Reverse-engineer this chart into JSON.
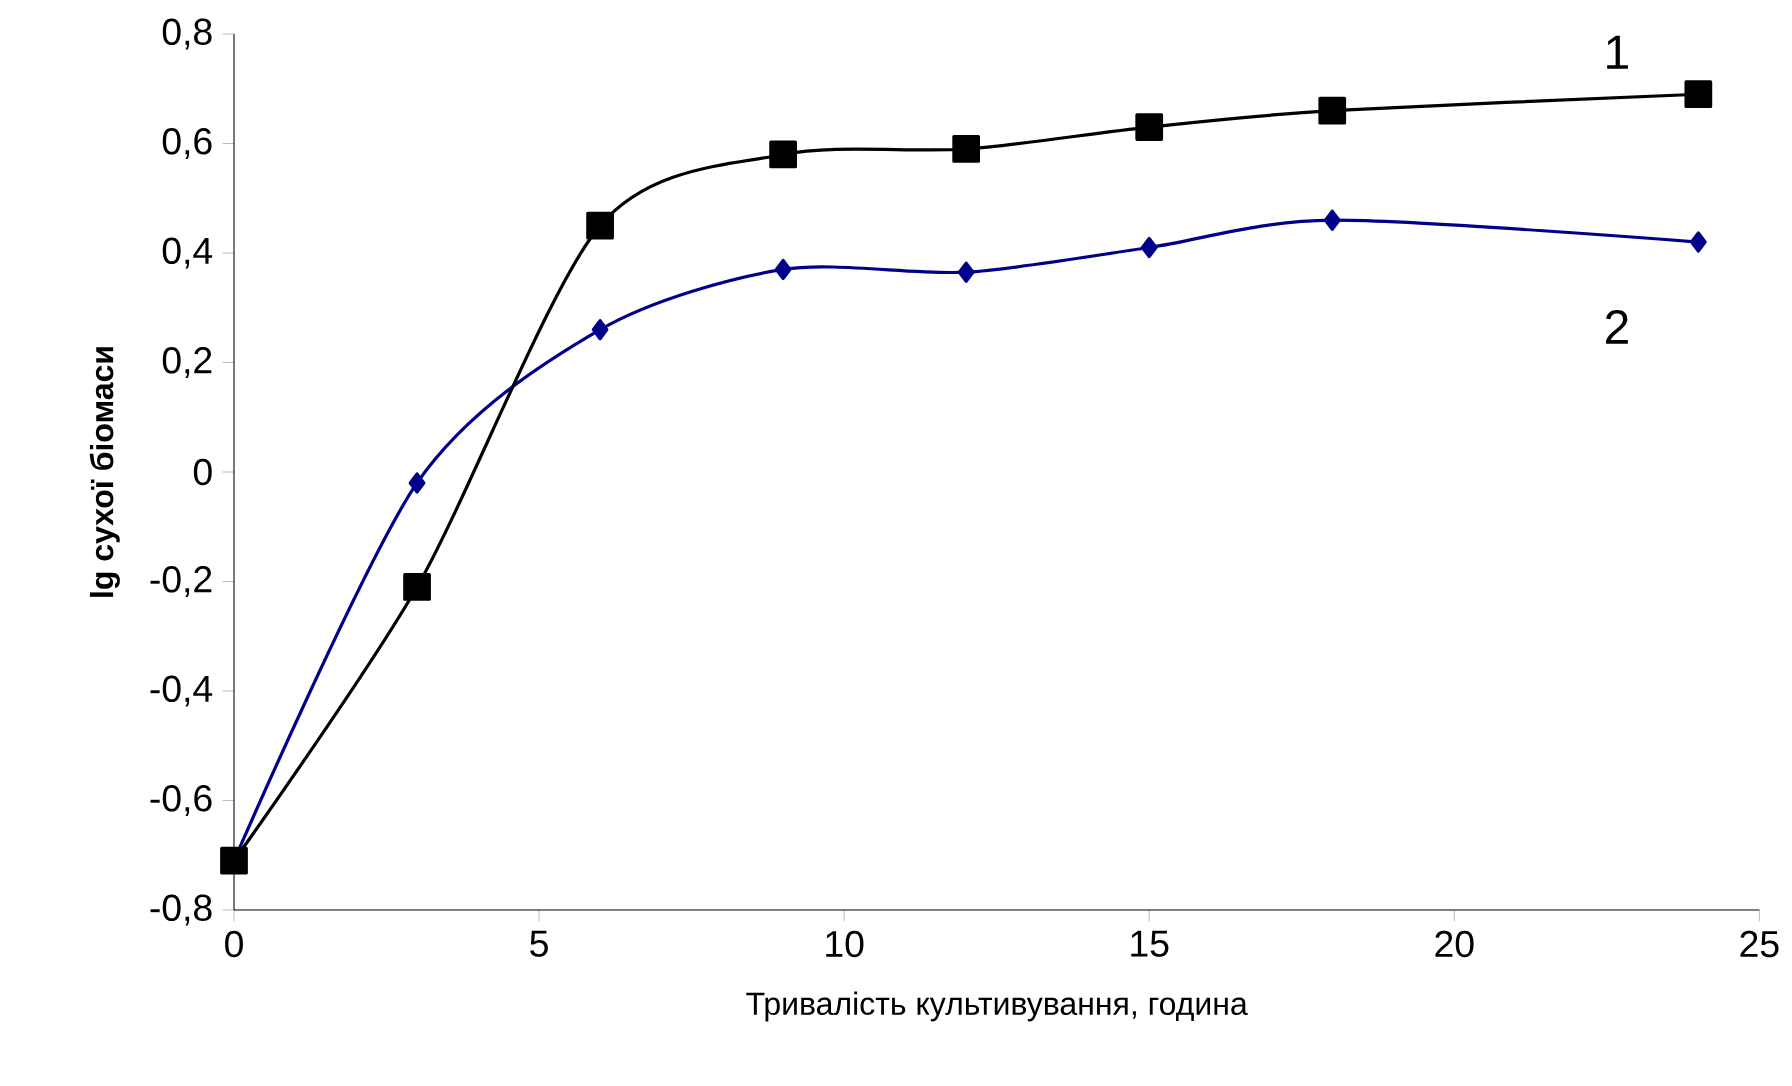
{
  "chart_data": {
    "type": "line",
    "xlabel": "Тривалість культивування, година",
    "ylabel": "lg сухої біомаси",
    "x": [
      0,
      3,
      6,
      9,
      12,
      15,
      18,
      24
    ],
    "series": [
      {
        "name": "1",
        "color": "#000000",
        "marker": "square",
        "values": [
          -0.71,
          -0.21,
          0.45,
          0.58,
          0.59,
          0.63,
          0.66,
          0.69
        ]
      },
      {
        "name": "2",
        "color": "#00008b",
        "marker": "diamond",
        "values": [
          -0.71,
          -0.02,
          0.26,
          0.37,
          0.365,
          0.41,
          0.46,
          0.42
        ]
      }
    ],
    "xlim": [
      0,
      25
    ],
    "xticks": [
      0,
      5,
      10,
      15,
      20,
      25
    ],
    "ylim": [
      -0.8,
      0.8
    ],
    "yticks": [
      {
        "value": -0.8,
        "label": "-0,8"
      },
      {
        "value": -0.6,
        "label": "-0,6"
      },
      {
        "value": -0.4,
        "label": "-0,4"
      },
      {
        "value": -0.2,
        "label": "-0,2"
      },
      {
        "value": 0,
        "label": "0"
      },
      {
        "value": 0.2,
        "label": "0,2"
      },
      {
        "value": 0.4,
        "label": "0,4"
      },
      {
        "value": 0.6,
        "label": "0,6"
      },
      {
        "value": 0.8,
        "label": "0,8"
      }
    ],
    "grid": false,
    "legend": false,
    "line_style": "solid"
  }
}
